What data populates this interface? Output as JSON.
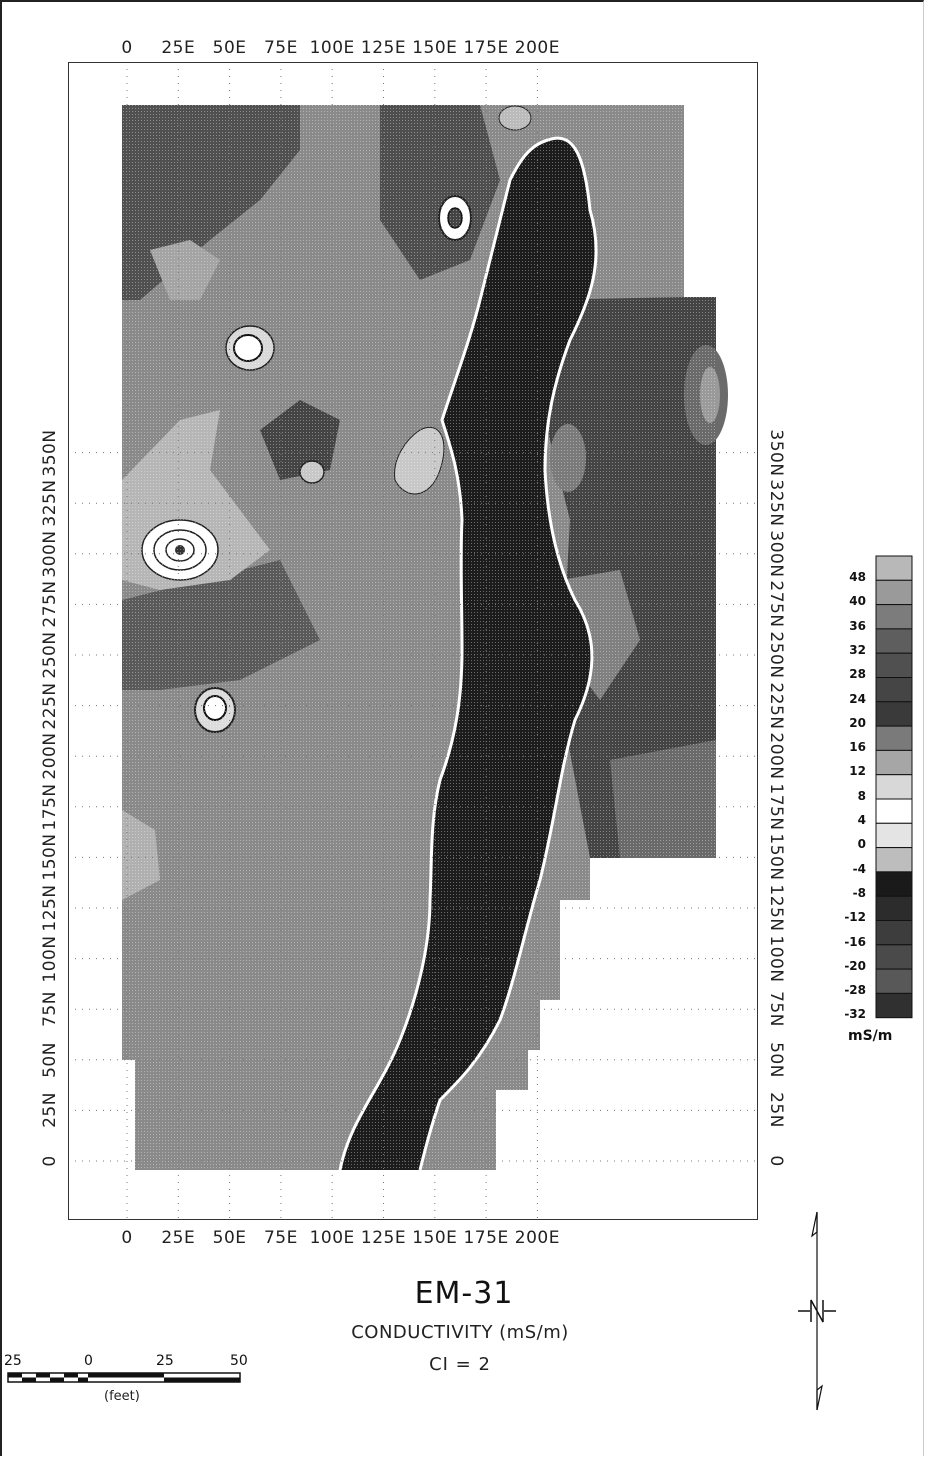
{
  "map": {
    "title": "EM-31",
    "subtitle": "CONDUCTIVITY (mS/m)",
    "contour_interval": "CI = 2",
    "x_ticks": [
      "0",
      "25E",
      "50E",
      "75E",
      "100E",
      "125E",
      "150E",
      "175E",
      "200E"
    ],
    "y_ticks": [
      "0",
      "25N",
      "50N",
      "75N",
      "100N",
      "125N",
      "150N",
      "175N",
      "200N",
      "225N",
      "250N",
      "275N",
      "300N",
      "325N",
      "350N"
    ]
  },
  "legend": {
    "labels": [
      "48",
      "40",
      "36",
      "32",
      "28",
      "24",
      "20",
      "16",
      "12",
      "8",
      "4",
      "0",
      "-4",
      "-8",
      "-12",
      "-16",
      "-20",
      "-28",
      "-32"
    ],
    "colors": [
      "#b8b8b8",
      "#9a9a9a",
      "#7c7c7c",
      "#5e5e5e",
      "#505050",
      "#454545",
      "#3a3a3a",
      "#7a7a7a",
      "#a6a6a6",
      "#d8d8d8",
      "#ffffff",
      "#e4e4e4",
      "#bdbdbd",
      "#1a1a1a",
      "#2c2c2c",
      "#3d3d3d",
      "#4a4a4a",
      "#585858",
      "#303030"
    ],
    "unit": "mS/m"
  },
  "scale_bar": {
    "labels": [
      "25",
      "0",
      "25",
      "50"
    ],
    "unit": "(feet)"
  },
  "north_arrow": {
    "icon": "north-arrow-icon"
  }
}
